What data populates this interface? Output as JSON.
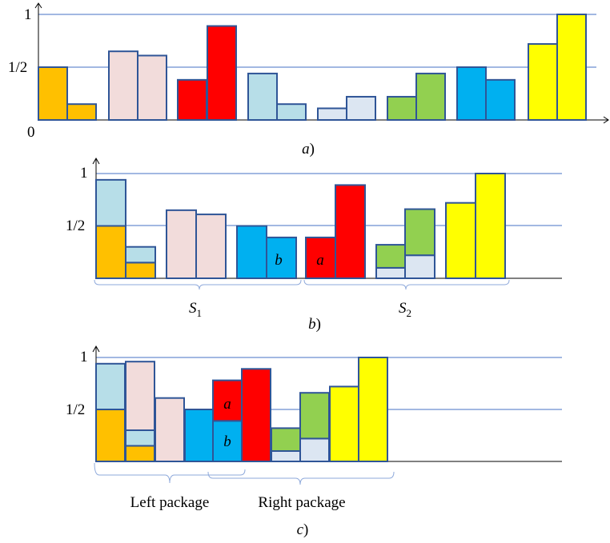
{
  "colors": {
    "orange": "#FFC000",
    "pink": "#F2DCDB",
    "red": "#FF0000",
    "lightblue": "#B7DEE8",
    "paleblue": "#DCE6F2",
    "green": "#92D050",
    "blue": "#00B0F0",
    "yellow": "#FFFF00",
    "outline": "#2F5597",
    "gridline": "#4472C4",
    "bracket": "#8EA9DB"
  },
  "panels": {
    "a": {
      "caption_letter": "a",
      "caption_paren": ")",
      "y_ticks": {
        "one": "1",
        "half": "1/2",
        "zero": "0"
      },
      "bins": [
        [
          "orange",
          "orange"
        ],
        [
          "pink",
          "pink"
        ],
        [
          "red",
          "red"
        ],
        [
          "lightblue",
          "lightblue"
        ],
        [
          "paleblue",
          "paleblue"
        ],
        [
          "green",
          "green"
        ],
        [
          "blue",
          "blue"
        ],
        [
          "yellow",
          "yellow"
        ]
      ],
      "items": [
        [
          {
            "color": "orange",
            "size": 0.5
          }
        ],
        [
          {
            "color": "orange",
            "size": 0.15
          }
        ],
        [
          {
            "color": "pink",
            "size": 0.65
          }
        ],
        [
          {
            "color": "pink",
            "size": 0.61
          }
        ],
        [
          {
            "color": "red",
            "size": 0.38
          }
        ],
        [
          {
            "color": "red",
            "size": 0.89
          }
        ],
        [
          {
            "color": "lightblue",
            "size": 0.44
          }
        ],
        [
          {
            "color": "lightblue",
            "size": 0.15
          }
        ],
        [
          {
            "color": "paleblue",
            "size": 0.11
          }
        ],
        [
          {
            "color": "paleblue",
            "size": 0.22
          }
        ],
        [
          {
            "color": "green",
            "size": 0.22
          }
        ],
        [
          {
            "color": "green",
            "size": 0.44
          }
        ],
        [
          {
            "color": "blue",
            "size": 0.5
          }
        ],
        [
          {
            "color": "blue",
            "size": 0.38
          }
        ],
        [
          {
            "color": "yellow",
            "size": 0.72
          }
        ],
        [
          {
            "color": "yellow",
            "size": 1.0
          }
        ]
      ]
    },
    "b": {
      "caption_letter": "b",
      "caption_paren": ")",
      "y_ticks": {
        "one": "1",
        "half": "1/2"
      },
      "group_labels": [
        {
          "main": "S",
          "sub": "1"
        },
        {
          "main": "S",
          "sub": "2"
        }
      ],
      "item_labels": {
        "b": "b",
        "a": "a"
      },
      "items": [
        [
          {
            "color": "orange",
            "size": 0.5
          },
          {
            "color": "lightblue",
            "size": 0.44
          }
        ],
        [
          {
            "color": "orange",
            "size": 0.15
          },
          {
            "color": "lightblue",
            "size": 0.15
          }
        ],
        [
          {
            "color": "pink",
            "size": 0.65
          }
        ],
        [
          {
            "color": "pink",
            "size": 0.61
          }
        ],
        [
          {
            "color": "blue",
            "size": 0.5
          }
        ],
        [
          {
            "color": "blue",
            "size": 0.39
          }
        ],
        [
          {
            "color": "red",
            "size": 0.39
          }
        ],
        [
          {
            "color": "red",
            "size": 0.89
          }
        ],
        [
          {
            "color": "paleblue",
            "size": 0.1
          },
          {
            "color": "green",
            "size": 0.22
          }
        ],
        [
          {
            "color": "paleblue",
            "size": 0.22
          },
          {
            "color": "green",
            "size": 0.44
          }
        ],
        [
          {
            "color": "yellow",
            "size": 0.72
          }
        ],
        [
          {
            "color": "yellow",
            "size": 1.0
          }
        ]
      ]
    },
    "c": {
      "caption_letter": "c",
      "caption_paren": ")",
      "y_ticks": {
        "one": "1",
        "half": "1/2"
      },
      "package_labels": [
        "Left package",
        "Right package"
      ],
      "item_labels": {
        "a": "a",
        "b": "b"
      },
      "items": [
        [
          {
            "color": "orange",
            "size": 0.5
          },
          {
            "color": "lightblue",
            "size": 0.44
          }
        ],
        [
          {
            "color": "orange",
            "size": 0.15
          },
          {
            "color": "lightblue",
            "size": 0.15
          },
          {
            "color": "pink",
            "size": 0.66
          }
        ],
        [
          {
            "color": "pink",
            "size": 0.61
          }
        ],
        [
          {
            "color": "blue",
            "size": 0.5
          }
        ],
        [
          {
            "color": "blue",
            "size": 0.39
          },
          {
            "color": "red",
            "size": 0.39
          }
        ],
        [
          {
            "color": "red",
            "size": 0.89
          }
        ],
        [
          {
            "color": "paleblue",
            "size": 0.1
          },
          {
            "color": "green",
            "size": 0.22
          }
        ],
        [
          {
            "color": "paleblue",
            "size": 0.22
          },
          {
            "color": "green",
            "size": 0.44
          }
        ],
        [
          {
            "color": "yellow",
            "size": 0.72
          }
        ],
        [
          {
            "color": "yellow",
            "size": 1.0
          }
        ]
      ]
    }
  }
}
